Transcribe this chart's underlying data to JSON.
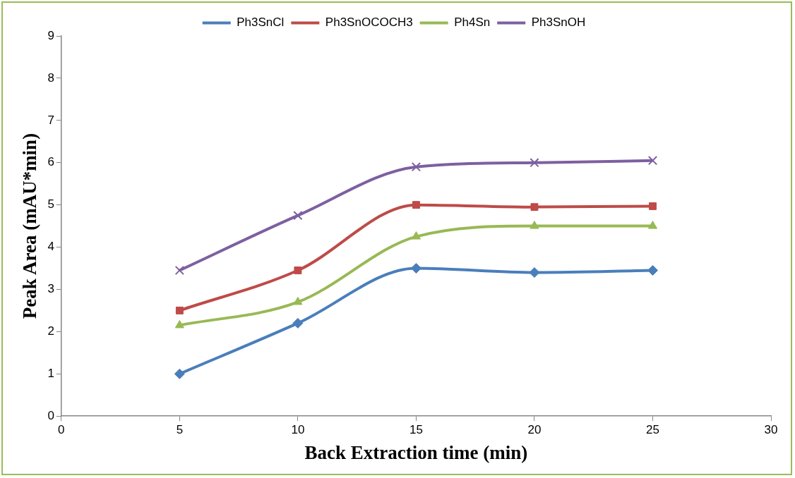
{
  "chart_data": {
    "type": "line",
    "xlabel": "Back Extraction time (min)",
    "ylabel": "Peak Area (mAU*min)",
    "x": [
      5,
      10,
      15,
      20,
      25
    ],
    "xlim": [
      0,
      30
    ],
    "xticks": [
      0,
      5,
      10,
      15,
      20,
      25,
      30
    ],
    "ylim": [
      0,
      9
    ],
    "yticks": [
      0,
      1,
      2,
      3,
      4,
      5,
      6,
      7,
      8,
      9
    ],
    "legend": "top",
    "grid": false,
    "series": [
      {
        "name": "Ph3SnCl",
        "color": "#4a7ebb",
        "marker": "diamond",
        "values": [
          1.0,
          2.2,
          3.5,
          3.4,
          3.45
        ]
      },
      {
        "name": "Ph3SnOCOCH3",
        "color": "#be4b48",
        "marker": "square",
        "values": [
          2.5,
          3.45,
          5.0,
          4.95,
          4.97
        ]
      },
      {
        "name": "Ph4Sn",
        "color": "#98b954",
        "marker": "triangle",
        "values": [
          2.15,
          2.7,
          4.25,
          4.5,
          4.5
        ]
      },
      {
        "name": "Ph3SnOH",
        "color": "#7d60a0",
        "marker": "cross",
        "values": [
          3.45,
          4.75,
          5.9,
          6.0,
          6.05
        ]
      }
    ]
  }
}
